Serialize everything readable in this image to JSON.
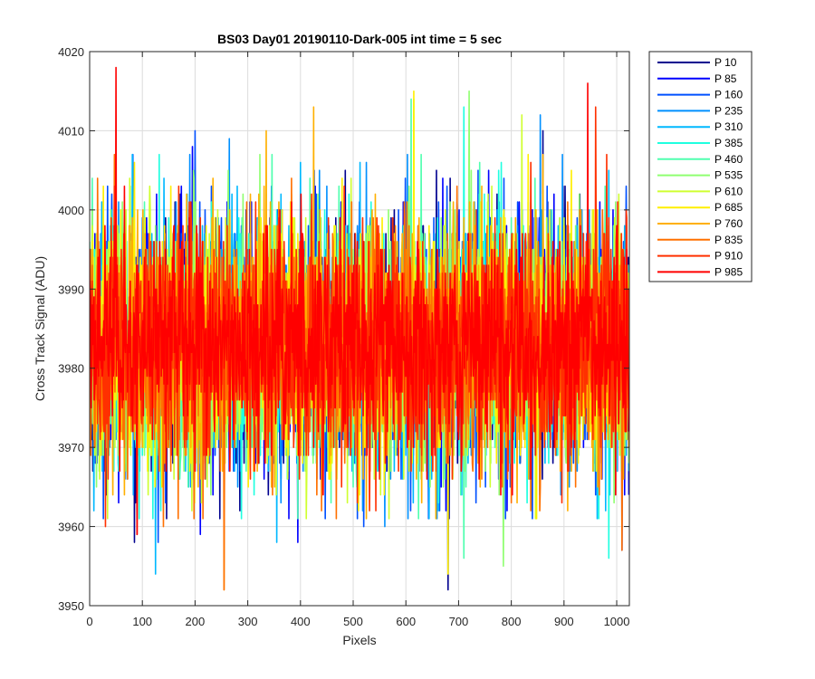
{
  "chart_data": {
    "type": "line",
    "title": "BS03 Day01 20190110-Dark-005 int time = 5 sec",
    "xlabel": "Pixels",
    "ylabel": "Cross Track Signal (ADU)",
    "xlim": [
      0,
      1024
    ],
    "ylim": [
      3950,
      4020
    ],
    "xticks": [
      0,
      100,
      200,
      300,
      400,
      500,
      600,
      700,
      800,
      900,
      1000
    ],
    "yticks": [
      3950,
      3960,
      3970,
      3980,
      3990,
      4000,
      4010,
      4020
    ],
    "grid": true,
    "legend_position": "outside-top-right",
    "n_points": 1024,
    "noise_note": "",
    "series": [
      {
        "name": "P 10",
        "color": "#00008f",
        "mean": 3983,
        "std": 7.5,
        "peaks": [
          [
            85,
            3958
          ],
          [
            285,
            3962
          ],
          [
            680,
            3952
          ],
          [
            860,
            4010
          ]
        ]
      },
      {
        "name": "P 85",
        "color": "#0000ff",
        "mean": 3983,
        "std": 7.5,
        "peaks": [
          [
            195,
            4008
          ],
          [
            210,
            3959
          ],
          [
            395,
            3958
          ],
          [
            1010,
            3957
          ]
        ]
      },
      {
        "name": "P 160",
        "color": "#0050ff",
        "mean": 3983,
        "std": 7.5,
        "peaks": [
          [
            200,
            4010
          ],
          [
            130,
            3958
          ],
          [
            520,
            3960
          ]
        ]
      },
      {
        "name": "P 235",
        "color": "#0090ff",
        "mean": 3983,
        "std": 7.5,
        "peaks": [
          [
            265,
            4009
          ],
          [
            560,
            3960
          ],
          [
            855,
            4012
          ]
        ]
      },
      {
        "name": "P 310",
        "color": "#00b8ff",
        "mean": 3983,
        "std": 7.5,
        "peaks": [
          [
            125,
            3954
          ],
          [
            355,
            3958
          ],
          [
            985,
            4005
          ]
        ]
      },
      {
        "name": "P 385",
        "color": "#1fffe0",
        "mean": 3983,
        "std": 7.5,
        "peaks": [
          [
            135,
            3962
          ],
          [
            710,
            4013
          ],
          [
            985,
            3956
          ]
        ]
      },
      {
        "name": "P 460",
        "color": "#50ffaf",
        "mean": 3983,
        "std": 7.5,
        "peaks": [
          [
            610,
            4014
          ],
          [
            710,
            3956
          ]
        ]
      },
      {
        "name": "P 535",
        "color": "#8fff70",
        "mean": 3983,
        "std": 7.5,
        "peaks": [
          [
            720,
            4015
          ],
          [
            785,
            3955
          ]
        ]
      },
      {
        "name": "P 610",
        "color": "#cfff30",
        "mean": 3983,
        "std": 7.5,
        "peaks": [
          [
            820,
            4012
          ],
          [
            615,
            4014
          ]
        ]
      },
      {
        "name": "P 685",
        "color": "#ffef00",
        "mean": 3983,
        "std": 7.5,
        "peaks": [
          [
            615,
            4015
          ],
          [
            680,
            3954
          ],
          [
            510,
            3962
          ]
        ]
      },
      {
        "name": "P 760",
        "color": "#ffb000",
        "mean": 3983,
        "std": 7.5,
        "peaks": [
          [
            425,
            4013
          ],
          [
            335,
            4010
          ],
          [
            255,
            3952
          ]
        ]
      },
      {
        "name": "P 835",
        "color": "#ff7000",
        "mean": 3983,
        "std": 7.5,
        "peaks": [
          [
            255,
            3952
          ],
          [
            1010,
            3957
          ],
          [
            140,
            3960
          ]
        ]
      },
      {
        "name": "P 910",
        "color": "#ff3000",
        "mean": 3983,
        "std": 7.5,
        "peaks": [
          [
            960,
            4013
          ],
          [
            90,
            3959
          ],
          [
            30,
            3960
          ]
        ]
      },
      {
        "name": "P 985",
        "color": "#ff0000",
        "mean": 3983,
        "std": 6.5,
        "peaks": [
          [
            50,
            4018
          ],
          [
            945,
            4016
          ],
          [
            90,
            3959
          ]
        ]
      }
    ]
  }
}
